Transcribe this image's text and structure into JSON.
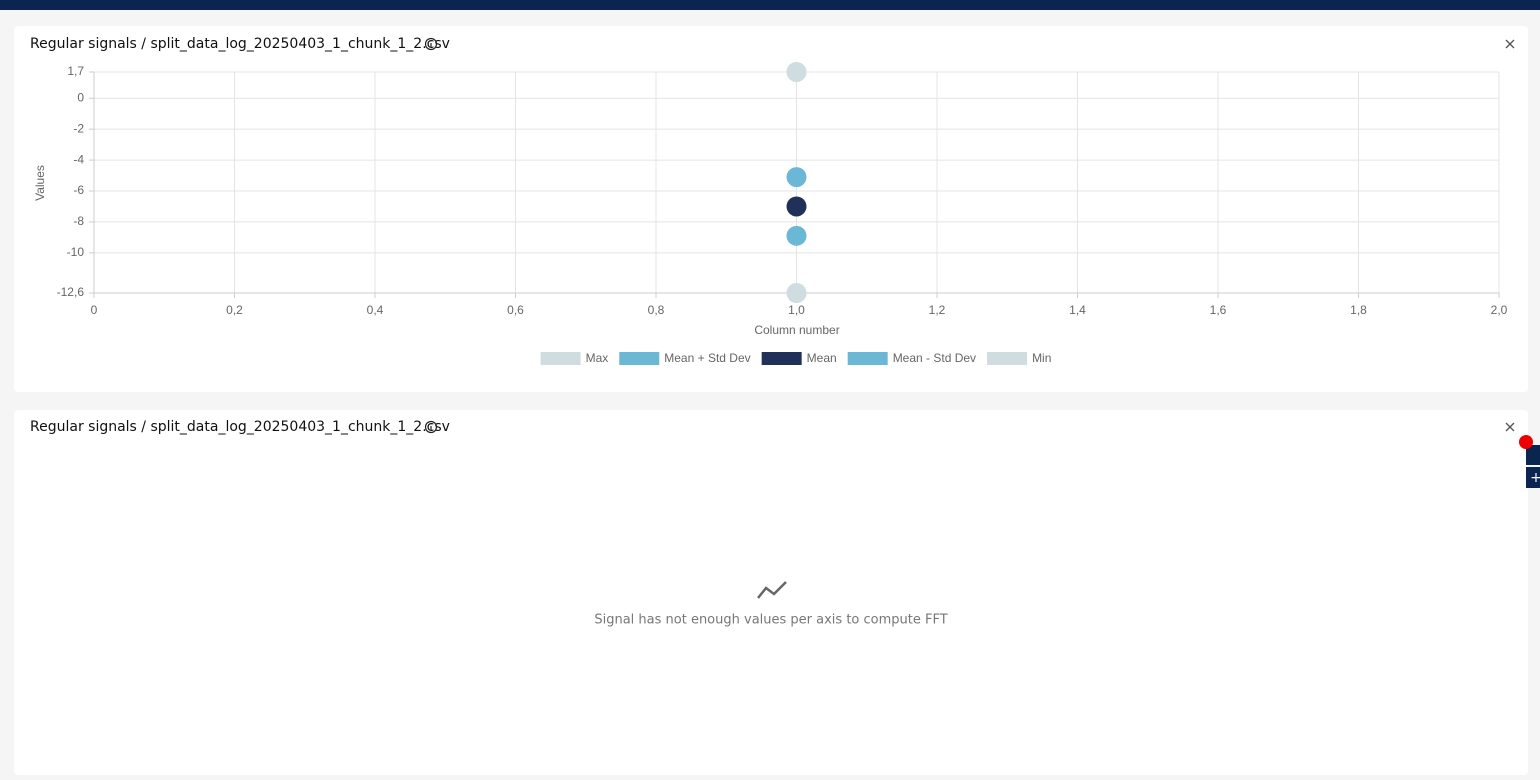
{
  "chart_data": {
    "type": "scatter",
    "title": "Regular signals / split_data_log_20250403_1_chunk_1_2.csv",
    "xlabel": "Column number",
    "ylabel": "Values",
    "x": [
      1
    ],
    "series": [
      {
        "name": "Max",
        "color": "#cfdde1",
        "values": [
          1.7
        ]
      },
      {
        "name": "Mean + Std Dev",
        "color": "#6bb8d6",
        "values": [
          -5.1
        ]
      },
      {
        "name": "Mean",
        "color": "#1f3158",
        "values": [
          -7.0
        ]
      },
      {
        "name": "Mean - Std Dev",
        "color": "#6bb8d6",
        "values": [
          -8.9
        ]
      },
      {
        "name": "Min",
        "color": "#cfdde1",
        "values": [
          -12.6
        ]
      }
    ],
    "xlim": [
      0,
      2
    ],
    "ylim": [
      -12.6,
      1.7
    ],
    "xticks": [
      0,
      {
        "value": 0.2,
        "label": "0,2"
      },
      {
        "value": 0.4,
        "label": "0,4"
      },
      {
        "value": 0.6,
        "label": "0,6"
      },
      {
        "value": 0.8,
        "label": "0,8"
      },
      {
        "value": 1,
        "label": "1,0"
      },
      {
        "value": 1.2,
        "label": "1,2"
      },
      {
        "value": 1.4,
        "label": "1,4"
      },
      {
        "value": 1.6,
        "label": "1,6"
      },
      {
        "value": 1.8,
        "label": "1,8"
      },
      {
        "value": 2,
        "label": "2,0"
      }
    ],
    "yticks": [
      {
        "value": 1.7,
        "label": "1,7"
      },
      0,
      -2,
      -4,
      -6,
      -8,
      -10,
      {
        "value": -12.6,
        "label": "-12,6"
      }
    ],
    "grid": true,
    "legend": "bottom"
  },
  "fft_panel": {
    "title": "Regular signals / split_data_log_20250403_1_chunk_1_2.csv",
    "message": "Signal has not enough values per axis to compute FFT"
  }
}
